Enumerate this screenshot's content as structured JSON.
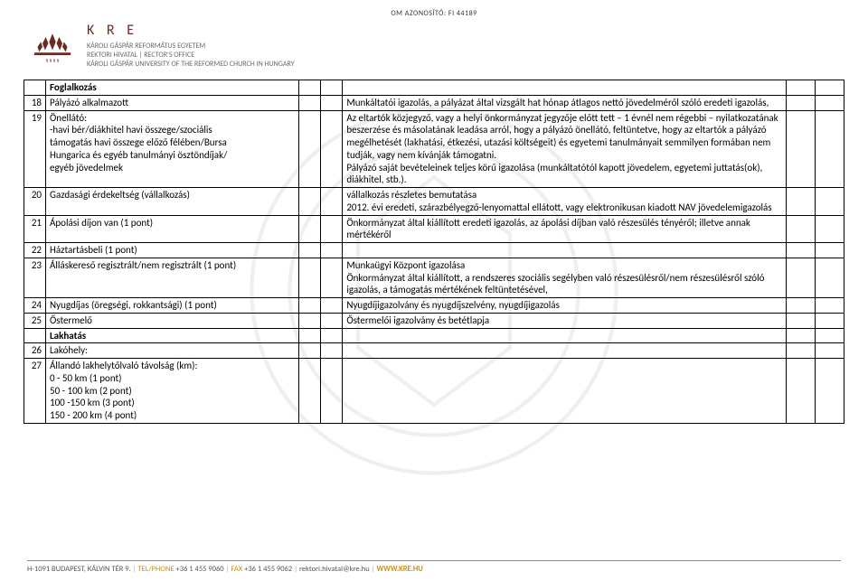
{
  "header": {
    "om_id": "OM AZONOSÍTÓ: FI 44189",
    "kre": "K R E",
    "org_line1": "KÁROLI GÁSPÁR REFORMÁTUS EGYETEM",
    "org_line2": "REKTORI HIVATAL  |  RECTOR'S OFFICE",
    "org_line3": "KÁROLI GÁSPÁR UNIVERSITY OF THE REFORMED CHURCH IN HUNGARY"
  },
  "rows": [
    {
      "n": "",
      "left": "Foglalkozás",
      "right": "",
      "leftBold": true
    },
    {
      "n": "18",
      "left": "Pályázó alkalmazott",
      "right": "Munkáltatói igazolás,  a pályázat által vizsgált hat hónap átlagos nettó jövedelméről szóló eredeti igazolás,"
    },
    {
      "n": "19",
      "left": "Önellátó:\n -havi bér/diákhitel havi összege/szociális\ntámogatás havi összege előző félében/Bursa\nHungarica és egyéb tanulmányi ösztöndíjak/\negyéb jövedelmek",
      "right": "Az eltartók közjegyző, vagy a helyi önkormányzat jegyzője előtt tett – 1 évnél nem régebbi –  nyilatkozatának beszerzése és másolatának leadása arról, hogy a pályázó önellátó, feltüntetve, hogy az eltartók a pályázó megélhetését (lakhatási, étkezési, utazási költségeit) és egyetemi tanulmányait semmilyen formában nem tudják, vagy nem kívánják támogatni.\nPályázó saját bevételeinek teljes körű igazolása (munkáltatótól kapott jövedelem, egyetemi juttatás(ok), diákhitel, stb.)."
    },
    {
      "n": "20",
      "left": "Gazdasági érdekeltség (vállalkozás)",
      "right": "vállalkozás részletes bemutatása\n2012. évi eredeti, szárazbélyegző-lenyomattal ellátott, vagy elektronikusan kiadott NAV jövedelemigazolás"
    },
    {
      "n": "21",
      "left": "Ápolási díjon van (1 pont)",
      "right": "Önkormányzat által kiállított eredeti igazolás, az ápolási díjban való részesülés tényéről; illetve annak mértékéről"
    },
    {
      "n": "22",
      "left": "Háztartásbeli (1 pont)",
      "right": ""
    },
    {
      "n": "23",
      "left": "Álláskereső regisztrált/nem regisztrált (1 pont)",
      "right": "Munkaügyi Központ igazolása\nÖnkormányzat által kiállított, a rendszeres szociális segélyben való részesülésről/nem részesülésről szóló igazolás, a támogatás mértékének feltüntetésével,"
    },
    {
      "n": "24",
      "left": "Nyugdíjas (öregségi, rokkantsági) (1 pont)",
      "right": "Nyugdíjigazolvány és nyugdíjszelvény, nyugdíjigazolás"
    },
    {
      "n": "25",
      "left": "Őstermelő",
      "right": "Őstermelői igazolvány és betétlapja"
    },
    {
      "n": "",
      "left": "Lakhatás",
      "right": "",
      "leftBold": true
    },
    {
      "n": "26",
      "left": "Lakóhely:",
      "right": ""
    },
    {
      "n": "27",
      "left": "Állandó lakhelytőlvaló távolság (km):\n0 - 50 km (1 pont)\n50 - 100 km (2 pont)\n100 -150 km (3 pont)\n150 - 200 km (4 pont)",
      "right": ""
    }
  ],
  "footer": {
    "addr": "H-1091 BUDAPEST, KÁLVIN TÉR 9.",
    "tel_label": "TEL/PHONE",
    "tel": "+36 1 455 9060",
    "fax_label": "FAX",
    "fax": "+36 1 455 9062",
    "email": "rektori.hivatal@kre.hu",
    "web": "WWW.KRE.HU"
  },
  "colors": {
    "brand": "#6b2a22",
    "orange": "#c7911a",
    "grid": "#000000"
  }
}
